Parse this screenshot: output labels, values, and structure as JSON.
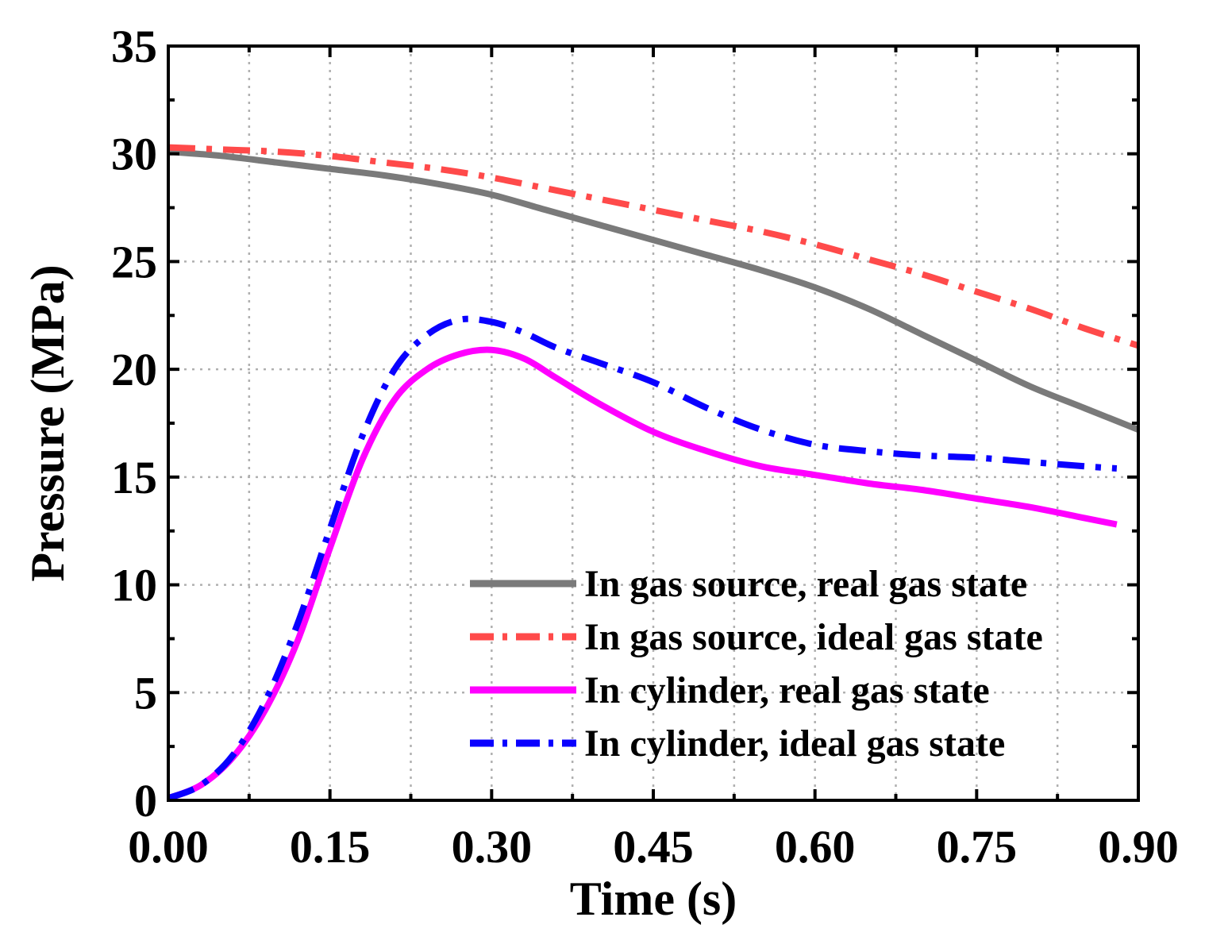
{
  "chart_data": {
    "type": "line",
    "title": "",
    "xlabel": "Time (s)",
    "ylabel": "Pressure  (MPa)",
    "xlim": [
      0,
      0.9
    ],
    "ylim": [
      0,
      35
    ],
    "xticks": [
      0,
      0.15,
      0.3,
      0.45,
      0.6,
      0.75,
      0.9
    ],
    "xtick_labels": [
      "0.00",
      "0.15",
      "0.30",
      "0.45",
      "0.60",
      "0.75",
      "0.90"
    ],
    "yticks": [
      0,
      5,
      10,
      15,
      20,
      25,
      30,
      35
    ],
    "ytick_labels": [
      "0",
      "5",
      "10",
      "15",
      "20",
      "25",
      "30",
      "35"
    ],
    "grid": true,
    "legend_position": "bottom-right",
    "series": [
      {
        "name": "In gas source, real gas state",
        "color": "#7a7a7a",
        "style": "solid",
        "x": [
          0,
          0.05,
          0.1,
          0.15,
          0.2,
          0.25,
          0.3,
          0.35,
          0.4,
          0.45,
          0.5,
          0.55,
          0.6,
          0.65,
          0.7,
          0.75,
          0.8,
          0.85,
          0.9
        ],
        "y": [
          30.1,
          29.9,
          29.6,
          29.3,
          29.0,
          28.6,
          28.1,
          27.4,
          26.7,
          26.0,
          25.3,
          24.6,
          23.8,
          22.8,
          21.6,
          20.4,
          19.2,
          18.2,
          17.2
        ]
      },
      {
        "name": "In gas source, ideal gas state",
        "color": "#ff4a4a",
        "style": "dashdot",
        "x": [
          0,
          0.05,
          0.1,
          0.15,
          0.2,
          0.25,
          0.3,
          0.35,
          0.4,
          0.45,
          0.5,
          0.55,
          0.6,
          0.65,
          0.7,
          0.75,
          0.8,
          0.85,
          0.9
        ],
        "y": [
          30.3,
          30.2,
          30.1,
          29.9,
          29.6,
          29.3,
          28.9,
          28.4,
          27.9,
          27.4,
          26.9,
          26.4,
          25.8,
          25.1,
          24.4,
          23.6,
          22.8,
          21.9,
          21.1
        ]
      },
      {
        "name": "In cylinder, real gas state",
        "color": "#ff00ff",
        "style": "solid",
        "x": [
          0,
          0.03,
          0.06,
          0.09,
          0.12,
          0.15,
          0.18,
          0.21,
          0.24,
          0.27,
          0.3,
          0.33,
          0.36,
          0.4,
          0.45,
          0.5,
          0.55,
          0.6,
          0.65,
          0.7,
          0.75,
          0.8,
          0.85,
          0.88
        ],
        "y": [
          0.1,
          0.7,
          2.0,
          4.2,
          7.4,
          11.7,
          15.8,
          18.6,
          20.0,
          20.7,
          20.9,
          20.5,
          19.6,
          18.4,
          17.1,
          16.2,
          15.5,
          15.1,
          14.7,
          14.4,
          14.0,
          13.6,
          13.1,
          12.8
        ]
      },
      {
        "name": "In cylinder, ideal gas state",
        "color": "#0a00ff",
        "style": "dashdot",
        "x": [
          0,
          0.03,
          0.06,
          0.09,
          0.12,
          0.15,
          0.18,
          0.21,
          0.24,
          0.27,
          0.3,
          0.33,
          0.36,
          0.4,
          0.45,
          0.5,
          0.55,
          0.6,
          0.65,
          0.7,
          0.75,
          0.8,
          0.85,
          0.88
        ],
        "y": [
          0.1,
          0.7,
          2.1,
          4.6,
          8.2,
          12.6,
          16.9,
          20.0,
          21.6,
          22.3,
          22.2,
          21.7,
          21.0,
          20.3,
          19.4,
          18.2,
          17.2,
          16.5,
          16.2,
          16.0,
          15.9,
          15.7,
          15.5,
          15.4
        ]
      }
    ]
  }
}
